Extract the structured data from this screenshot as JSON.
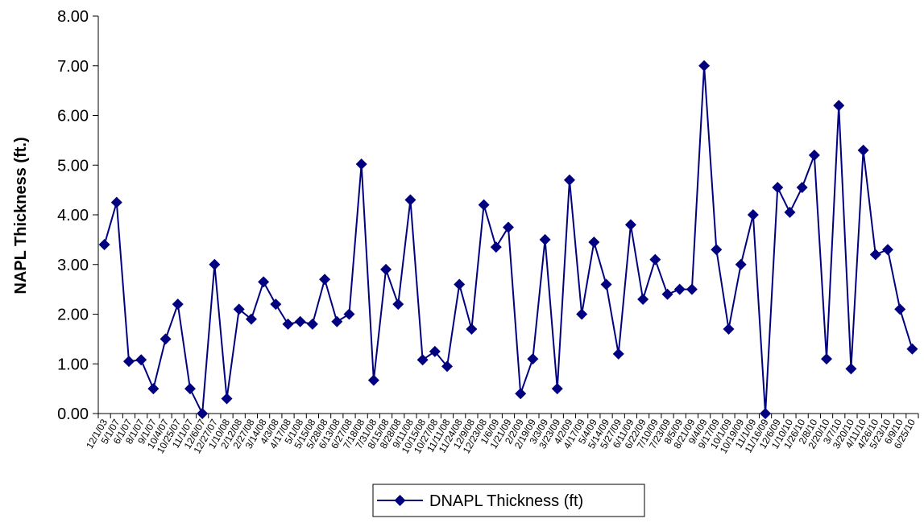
{
  "chart_data": {
    "type": "line",
    "title": "",
    "xlabel": "",
    "ylabel": "NAPL Thickness (ft.)",
    "ylim": [
      0,
      8
    ],
    "yticks": [
      "0.00",
      "1.00",
      "2.00",
      "3.00",
      "4.00",
      "5.00",
      "6.00",
      "7.00",
      "8.00"
    ],
    "grid": false,
    "legend_position": "bottom",
    "colors": {
      "series": "#000080",
      "axis": "#000000"
    },
    "categories": [
      "12/1/03",
      "5/1/07",
      "6/1/07",
      "8/1/07",
      "9/1/07",
      "10/4/07",
      "10/25/07",
      "11/1/07",
      "12/6/07",
      "12/27/07",
      "1/10/08",
      "2/12/08",
      "2/27/08",
      "3/14/08",
      "4/3/08",
      "4/17/08",
      "5/1/08",
      "5/15/08",
      "5/28/08",
      "6/13/08",
      "6/27/08",
      "7/18/08",
      "7/31/08",
      "8/15/08",
      "8/28/08",
      "9/11/08",
      "10/15/08",
      "10/27/08",
      "11/11/08",
      "11/24/08",
      "12/9/08",
      "12/23/08",
      "1/6/09",
      "1/21/09",
      "2/2/09",
      "2/19/09",
      "3/3/09",
      "3/23/09",
      "4/2/09",
      "4/17/09",
      "5/4/09",
      "5/14/09",
      "5/27/09",
      "6/11/09",
      "6/22/09",
      "7/10/09",
      "7/23/09",
      "8/5/09",
      "8/21/09",
      "9/4/09",
      "9/17/09",
      "10/1/09",
      "10/19/09",
      "11/1/09",
      "11/16/09",
      "12/6/09",
      "1/10/10",
      "1/26/10",
      "2/8/10",
      "2/20/10",
      "3/7/10",
      "3/20/10",
      "4/11/10",
      "4/26/10",
      "5/23/10",
      "6/9/10",
      "6/25/10"
    ],
    "series": [
      {
        "name": "DNAPL Thickness (ft)",
        "values": [
          3.4,
          4.25,
          1.05,
          1.08,
          0.5,
          1.5,
          2.2,
          0.5,
          0.0,
          3.0,
          0.3,
          2.1,
          1.9,
          2.65,
          2.2,
          1.8,
          1.85,
          1.8,
          2.7,
          1.85,
          2.0,
          5.02,
          0.67,
          2.9,
          2.2,
          4.3,
          1.08,
          1.25,
          0.95,
          2.6,
          1.7,
          4.2,
          3.35,
          3.75,
          0.4,
          1.1,
          3.5,
          0.5,
          4.7,
          2.0,
          3.45,
          2.6,
          1.2,
          3.8,
          2.3,
          3.1,
          2.4,
          2.5,
          2.5,
          7.0,
          3.3,
          1.7,
          3.0,
          4.0,
          0.0,
          4.55,
          4.05,
          4.55,
          5.2,
          1.1,
          6.2,
          0.9,
          5.3,
          3.2,
          3.3,
          2.1,
          1.3
        ]
      }
    ]
  }
}
